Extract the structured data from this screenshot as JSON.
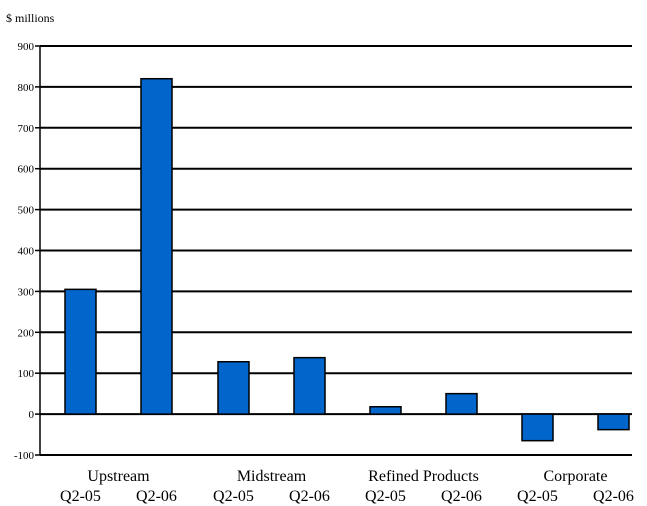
{
  "chart_data": {
    "type": "bar",
    "ylabel": "$ millions",
    "ylim": [
      -100,
      900
    ],
    "yticks": [
      -100,
      0,
      100,
      200,
      300,
      400,
      500,
      600,
      700,
      800,
      900
    ],
    "grid": true,
    "bar_color": "#0066cc",
    "categories": [
      "Upstream",
      "Midstream",
      "Refined Products",
      "Corporate"
    ],
    "sub_labels": [
      "Q2-05",
      "Q2-06"
    ],
    "groups": [
      {
        "category": "Upstream",
        "values": [
          305,
          820
        ]
      },
      {
        "category": "Midstream",
        "values": [
          128,
          138
        ]
      },
      {
        "category": "Refined Products",
        "values": [
          18,
          50
        ]
      },
      {
        "category": "Corporate",
        "values": [
          -65,
          -38
        ]
      }
    ]
  }
}
